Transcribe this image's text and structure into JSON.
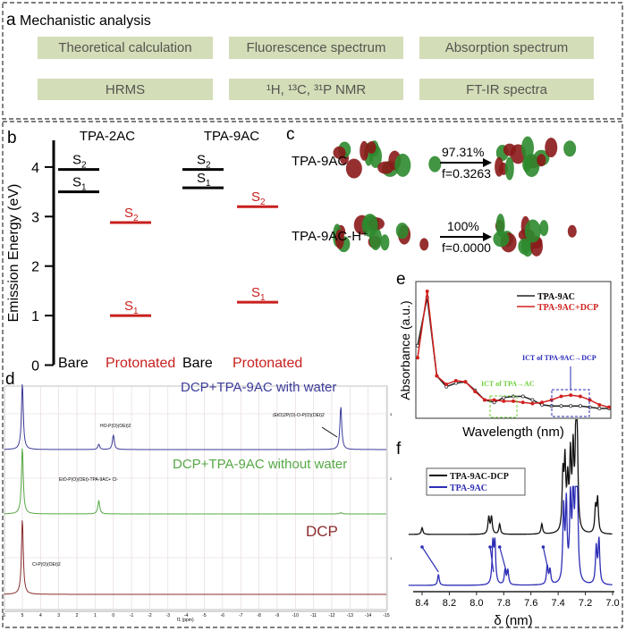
{
  "panel_a": {
    "letter": "a",
    "title": "Mechanistic analysis",
    "boxes": [
      "Theoretical calculation",
      "Fluorescence spectrum",
      "Absorption spectrum",
      "HRMS",
      "¹H, ¹³C, ³¹P NMR",
      "FT-IR spectra"
    ],
    "box_color": "#d3ddb8"
  },
  "panel_c": {
    "letter": "c",
    "rows": [
      {
        "label": "TPA-9AC",
        "percent": "97.31%",
        "f": "f=0.3263"
      },
      {
        "label": "TPA-9AC-H⁺",
        "percent": "100%",
        "f": "f=0.0000"
      }
    ]
  },
  "panel_d": {
    "letter": "d",
    "trace_labels": [
      "DCP+TPA-9AC with water",
      "DCP+TPA-9AC without water",
      "DCP"
    ],
    "structure_labels": [
      "HO-P(O)(OEt)2",
      "(EtO)2P(O)-O-P(O)(OEt)2",
      "EtO-P(O)(OEt)-TPA-9AC+ Cl-",
      "Cl-P(O)(OEt)2"
    ],
    "xlabel": "f1 (ppm)",
    "right_ticks": [
      "3",
      "2",
      "1"
    ]
  },
  "chart_data": [
    {
      "panel": "b",
      "type": "energy-level diagram",
      "ylabel": "Emission Energy (eV)",
      "ylim": [
        0,
        4.4
      ],
      "yticks": [
        "0",
        "1",
        "2",
        "3",
        "4"
      ],
      "groups": [
        "TPA-2AC",
        "TPA-9AC"
      ],
      "state_types": [
        "Bare",
        "Protonated"
      ],
      "colors": {
        "Bare": "#000000",
        "Protonated": "#c8201e"
      },
      "levels": [
        {
          "group": "TPA-2AC",
          "type": "Bare",
          "S1": 3.5,
          "S2": 3.95
        },
        {
          "group": "TPA-2AC",
          "type": "Protonated",
          "S1": 1.0,
          "S2": 2.88
        },
        {
          "group": "TPA-9AC",
          "type": "Bare",
          "S1": 3.58,
          "S2": 3.95
        },
        {
          "group": "TPA-9AC",
          "type": "Protonated",
          "S1": 1.27,
          "S2": 3.2
        }
      ],
      "state_labels": [
        "S2",
        "S1"
      ]
    },
    {
      "panel": "d",
      "type": "line",
      "xlabel": "f1 (ppm)",
      "xlim": [
        6,
        -15
      ],
      "xticks": [
        "6",
        "5",
        "4",
        "3",
        "2",
        "1",
        "0",
        "-1",
        "-2",
        "-3",
        "-4",
        "-5",
        "-6",
        "-7",
        "-8",
        "-9",
        "-10",
        "-11",
        "-12",
        "-13",
        "-14",
        "-15"
      ],
      "series": [
        {
          "name": "DCP+TPA-9AC with water",
          "color": "#3b3b9a",
          "peaks": [
            {
              "x": 5,
              "h": 1.0
            },
            {
              "x": 0.8,
              "h": 0.08
            },
            {
              "x": 0,
              "h": 0.22
            },
            {
              "x": -12.5,
              "h": 0.65
            }
          ]
        },
        {
          "name": "DCP+TPA-9AC without water",
          "color": "#55a845",
          "peaks": [
            {
              "x": 5,
              "h": 1.0
            },
            {
              "x": 0.8,
              "h": 0.2
            },
            {
              "x": -12.5,
              "h": 0.02
            }
          ]
        },
        {
          "name": "DCP",
          "color": "#8a2c2c",
          "peaks": [
            {
              "x": 5,
              "h": 1.0
            }
          ]
        }
      ]
    },
    {
      "panel": "e",
      "type": "line",
      "xlabel": "Wavelength (nm)",
      "ylabel": "Absorbance (a.u.)",
      "series": [
        {
          "name": "TPA-9AC",
          "color": "#222222",
          "y": [
            0.55,
            0.95,
            0.3,
            0.21,
            0.24,
            0.25,
            0.18,
            0.1,
            0.08,
            0.12,
            0.13,
            0.13,
            0.1,
            0.06,
            0.05,
            0.05,
            0.05,
            0.05,
            0.04,
            0.03,
            0.03
          ]
        },
        {
          "name": "TPA-9AC+DCP",
          "color": "#d0211f",
          "y": [
            0.45,
            1.0,
            0.3,
            0.23,
            0.26,
            0.25,
            0.17,
            0.1,
            0.1,
            0.09,
            0.09,
            0.08,
            0.07,
            0.08,
            0.1,
            0.13,
            0.14,
            0.13,
            0.1,
            0.06,
            0.04
          ]
        }
      ],
      "annotations": [
        {
          "text": "ICT of TPA→AC",
          "color": "#6fcf3a"
        },
        {
          "text": "ICT of TPA-9AC→DCP",
          "color": "#2b2bb8"
        }
      ]
    },
    {
      "panel": "f",
      "type": "line",
      "xlabel": "δ (nm)",
      "xlim": [
        8.5,
        7.0
      ],
      "xticks": [
        "8.4",
        "8.2",
        "8.0",
        "7.8",
        "7.6",
        "7.4",
        "7.2",
        "7.0"
      ],
      "series": [
        {
          "name": "TPA-9AC-DCP",
          "color": "#111111",
          "peaks": [
            {
              "x": 8.4,
              "h": 0.08
            },
            {
              "x": 7.91,
              "h": 0.2
            },
            {
              "x": 7.89,
              "h": 0.2
            },
            {
              "x": 7.83,
              "h": 0.12
            },
            {
              "x": 7.52,
              "h": 0.12
            },
            {
              "x": 7.365,
              "h": 0.65
            },
            {
              "x": 7.35,
              "h": 0.78
            },
            {
              "x": 7.33,
              "h": 0.55
            },
            {
              "x": 7.31,
              "h": 0.85
            },
            {
              "x": 7.29,
              "h": 0.9
            },
            {
              "x": 7.27,
              "h": 1.0
            },
            {
              "x": 7.26,
              "h": 0.95
            },
            {
              "x": 7.125,
              "h": 0.3
            },
            {
              "x": 7.11,
              "h": 0.4
            }
          ]
        },
        {
          "name": "TPA-9AC",
          "color": "#2d2db5",
          "peaks": [
            {
              "x": 8.28,
              "h": 0.15
            },
            {
              "x": 7.88,
              "h": 0.55
            },
            {
              "x": 7.865,
              "h": 0.55
            },
            {
              "x": 7.79,
              "h": 0.2
            },
            {
              "x": 7.77,
              "h": 0.2
            },
            {
              "x": 7.48,
              "h": 0.25
            },
            {
              "x": 7.46,
              "h": 0.2
            },
            {
              "x": 7.36,
              "h": 1.0
            },
            {
              "x": 7.34,
              "h": 1.05
            },
            {
              "x": 7.31,
              "h": 1.1
            },
            {
              "x": 7.29,
              "h": 1.2
            },
            {
              "x": 7.27,
              "h": 1.3
            },
            {
              "x": 7.26,
              "h": 1.25
            },
            {
              "x": 7.12,
              "h": 0.5
            },
            {
              "x": 7.1,
              "h": 0.6
            }
          ]
        }
      ],
      "legend_placement": "top-left"
    }
  ]
}
